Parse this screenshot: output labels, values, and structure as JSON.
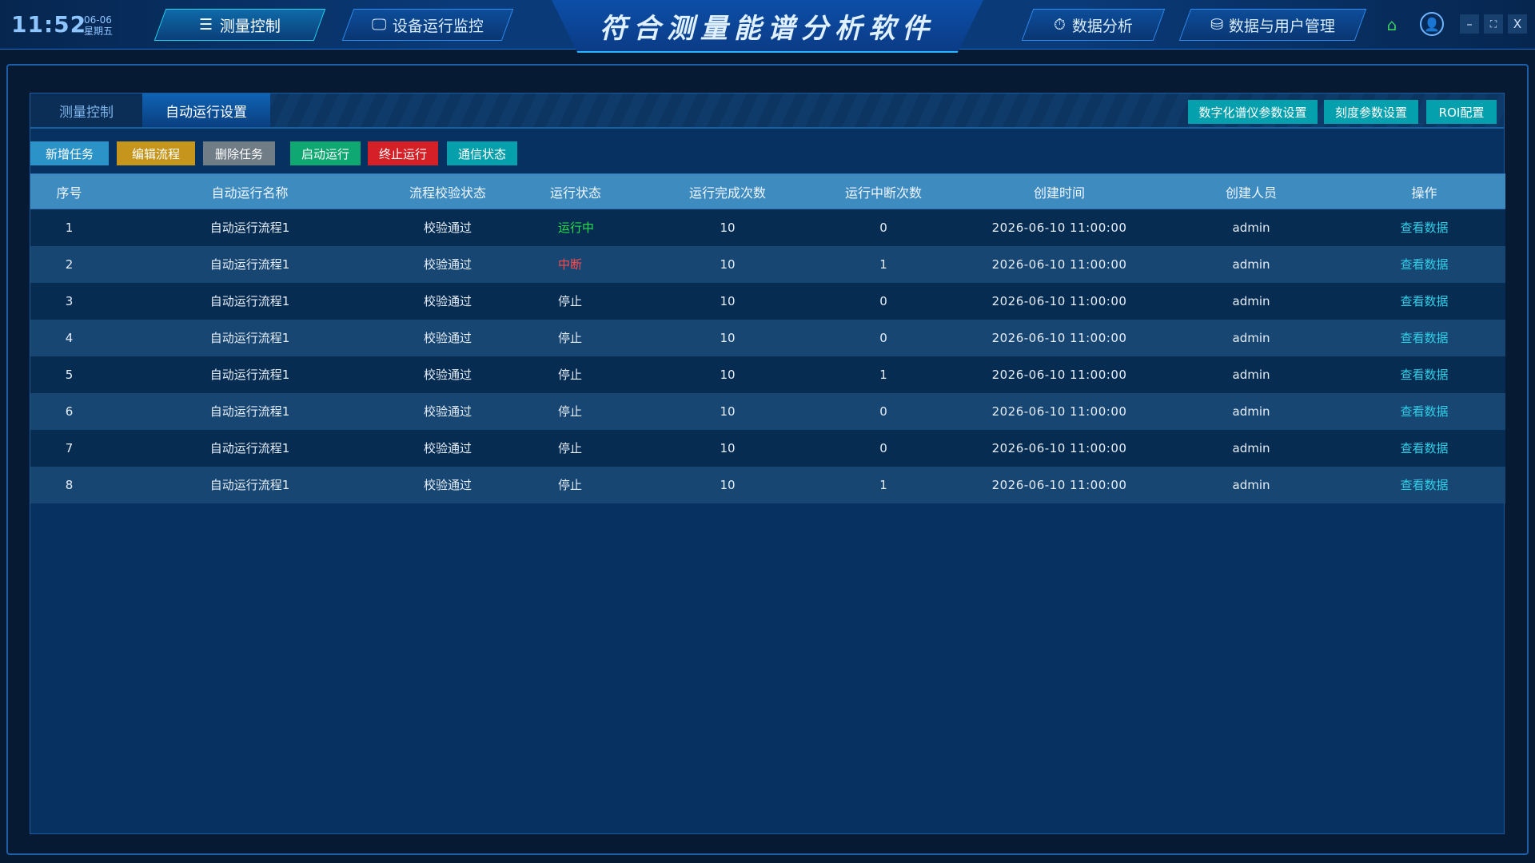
{
  "header": {
    "time": "11:52",
    "date": "06-06",
    "weekday": "星期五",
    "title": "符合测量能谱分析软件",
    "nav": [
      {
        "label": "测量控制",
        "icon": "sliders-icon",
        "active": true
      },
      {
        "label": "设备运行监控",
        "icon": "monitor-icon"
      },
      {
        "label": "数据分析",
        "icon": "analysis-icon"
      },
      {
        "label": "数据与用户管理",
        "icon": "database-user-icon"
      }
    ],
    "window": {
      "minimize": "–",
      "maximize": "⛶",
      "close": "X"
    }
  },
  "tabs": [
    {
      "label": "测量控制"
    },
    {
      "label": "自动运行设置",
      "active": true
    }
  ],
  "config_buttons": [
    "数字化谱仪参数设置",
    "刻度参数设置",
    "ROI配置"
  ],
  "toolbar": [
    {
      "label": "新增任务",
      "color": "#2c93c8"
    },
    {
      "label": "编辑流程",
      "color": "#c6961c"
    },
    {
      "label": "删除任务",
      "color": "#707c86"
    },
    {
      "label": "启动运行",
      "color": "#10a872"
    },
    {
      "label": "终止运行",
      "color": "#d42026"
    },
    {
      "label": "通信状态",
      "color": "#06a0ac"
    }
  ],
  "table": {
    "columns": [
      "序号",
      "自动运行名称",
      "流程校验状态",
      "运行状态",
      "运行完成次数",
      "运行中断次数",
      "创建时间",
      "创建人员",
      "操作"
    ],
    "status_colors": {
      "运行中": "#22e04a",
      "中断": "#ff4a4a",
      "停止": "#e6eef8"
    },
    "rows": [
      [
        "1",
        "自动运行流程1",
        "校验通过",
        "运行中",
        "10",
        "0",
        "2026-06-10 11:00:00",
        "admin",
        "查看数据"
      ],
      [
        "2",
        "自动运行流程1",
        "校验通过",
        "中断",
        "10",
        "1",
        "2026-06-10 11:00:00",
        "admin",
        "查看数据"
      ],
      [
        "3",
        "自动运行流程1",
        "校验通过",
        "停止",
        "10",
        "0",
        "2026-06-10 11:00:00",
        "admin",
        "查看数据"
      ],
      [
        "4",
        "自动运行流程1",
        "校验通过",
        "停止",
        "10",
        "0",
        "2026-06-10 11:00:00",
        "admin",
        "查看数据"
      ],
      [
        "5",
        "自动运行流程1",
        "校验通过",
        "停止",
        "10",
        "1",
        "2026-06-10 11:00:00",
        "admin",
        "查看数据"
      ],
      [
        "6",
        "自动运行流程1",
        "校验通过",
        "停止",
        "10",
        "0",
        "2026-06-10 11:00:00",
        "admin",
        "查看数据"
      ],
      [
        "7",
        "自动运行流程1",
        "校验通过",
        "停止",
        "10",
        "0",
        "2026-06-10 11:00:00",
        "admin",
        "查看数据"
      ],
      [
        "8",
        "自动运行流程1",
        "校验通过",
        "停止",
        "10",
        "1",
        "2026-06-10 11:00:00",
        "admin",
        "查看数据"
      ]
    ]
  }
}
